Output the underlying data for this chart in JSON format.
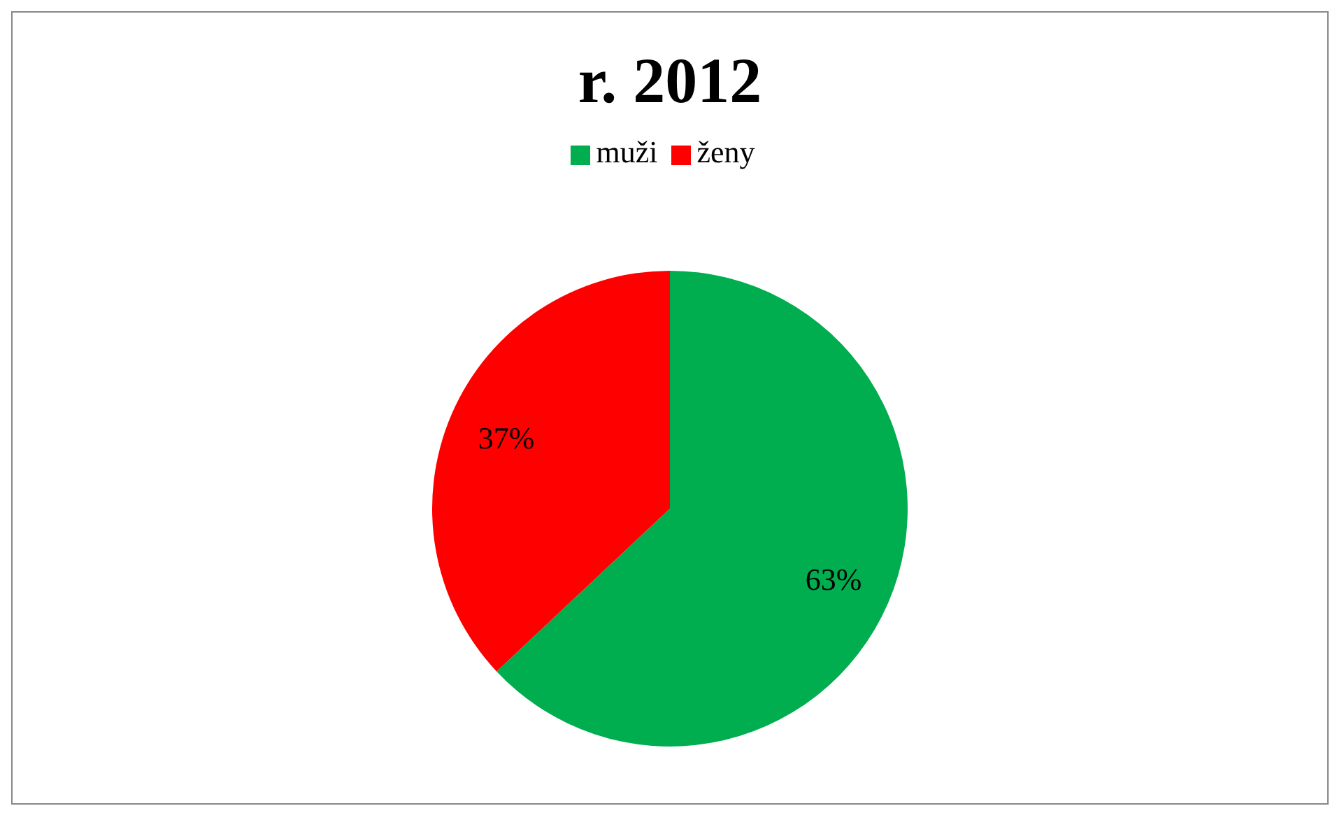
{
  "chart_data": {
    "type": "pie",
    "title": "r. 2012",
    "categories": [
      "muži",
      "ženy"
    ],
    "values": [
      63,
      37
    ],
    "colors": [
      "#00ad4f",
      "#ff0000"
    ],
    "value_labels": [
      "63%",
      "37%"
    ],
    "legend": "top"
  }
}
